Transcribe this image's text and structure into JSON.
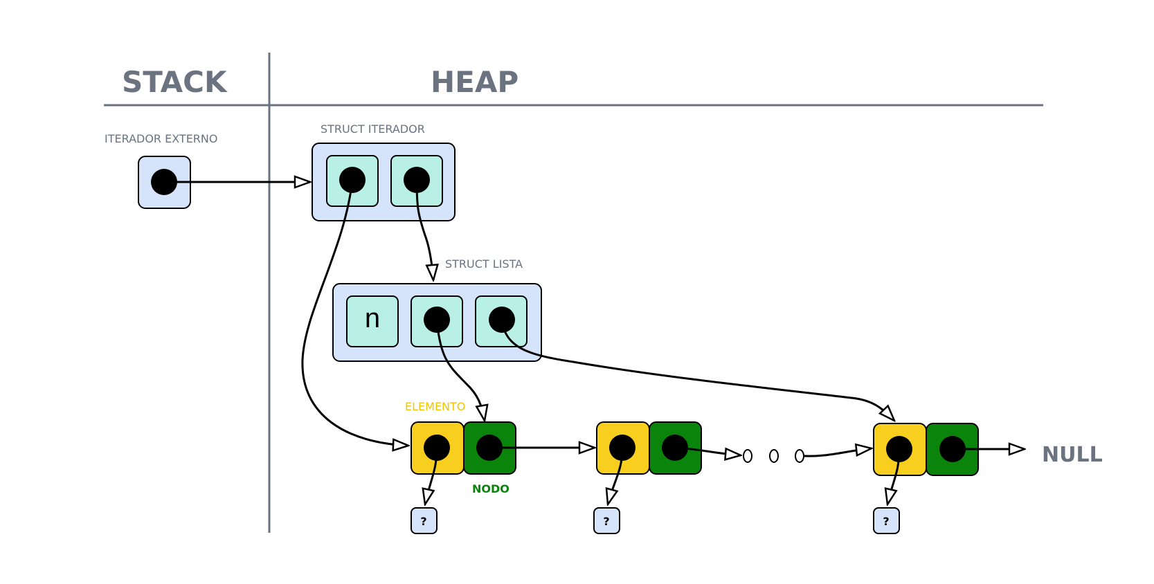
{
  "headers": {
    "stack": "STACK",
    "heap": "HEAP"
  },
  "labels": {
    "iterador_externo": "ITERADOR EXTERNO",
    "struct_iterador": "STRUCT ITERADOR",
    "struct_lista": "STRUCT LISTA",
    "elemento": "ELEMENTO",
    "nodo": "NODO",
    "null": "NULL"
  },
  "lista_cells": {
    "n_field": "n"
  },
  "unknown_marker": "?",
  "colors": {
    "text_gray": "#6b7280",
    "box_blue": "#d6e4fb",
    "cell_mint": "#b8f0e6",
    "elemento_yellow": "#f8cf1f",
    "nodo_green": "#0a840a",
    "elemento_label": "#f5c400",
    "nodo_label": "#0a840a"
  }
}
